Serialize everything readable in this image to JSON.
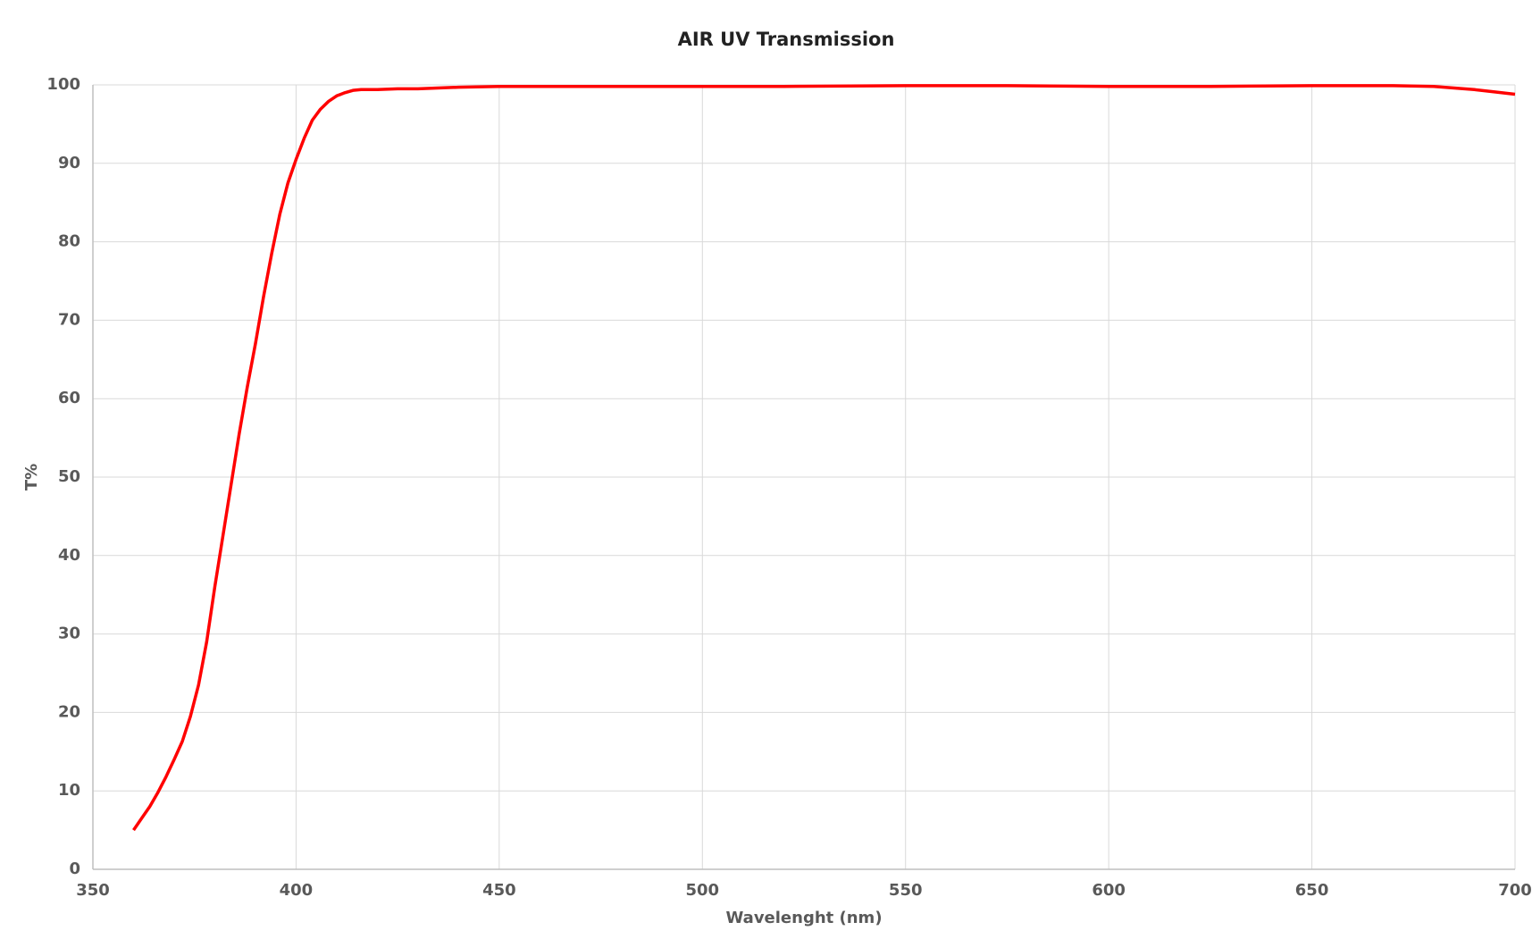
{
  "chart_data": {
    "type": "line",
    "title": "AIR UV  Transmission",
    "x_label": "Wavelenght  (nm)",
    "y_label": "T%",
    "x": [
      360,
      362,
      364,
      366,
      368,
      370,
      372,
      374,
      376,
      378,
      380,
      382,
      384,
      386,
      388,
      390,
      392,
      394,
      396,
      398,
      400,
      402,
      404,
      406,
      408,
      410,
      412,
      414,
      416,
      420,
      425,
      430,
      440,
      450,
      460,
      480,
      500,
      520,
      550,
      575,
      600,
      625,
      650,
      670,
      680,
      690,
      695,
      700
    ],
    "series": [
      {
        "name": "T%",
        "color": "#ff0000",
        "values": [
          5,
          6.5,
          8,
          9.8,
          11.8,
          14,
          16.3,
          19.5,
          23.5,
          29,
          36,
          42.5,
          49,
          55.5,
          61.5,
          67,
          73,
          78.5,
          83.5,
          87.5,
          90.5,
          93.2,
          95.5,
          96.9,
          97.9,
          98.6,
          99,
          99.3,
          99.4,
          99.4,
          99.5,
          99.5,
          99.7,
          99.8,
          99.8,
          99.8,
          99.8,
          99.8,
          99.9,
          99.9,
          99.8,
          99.8,
          99.9,
          99.9,
          99.8,
          99.4,
          99.1,
          98.8
        ]
      }
    ],
    "xlim": [
      350,
      700
    ],
    "xticks": [
      350,
      400,
      450,
      500,
      550,
      600,
      650,
      700
    ],
    "ylim": [
      0,
      100
    ],
    "yticks": [
      0,
      10,
      20,
      30,
      40,
      50,
      60,
      70,
      80,
      90,
      100
    ],
    "grid": true
  }
}
